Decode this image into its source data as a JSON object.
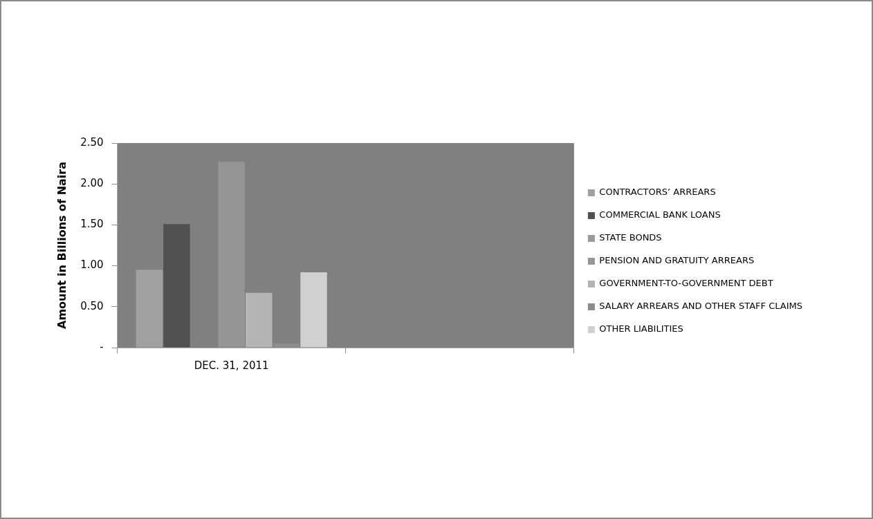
{
  "chart_data": {
    "type": "bar",
    "ylabel": "Amount in Billions of Naira",
    "categories": [
      "DEC. 31, 2011",
      null
    ],
    "series": [
      {
        "name": "CONTRACTORS’ ARREARS",
        "color": "#a0a0a0",
        "values": [
          0.95,
          null
        ]
      },
      {
        "name": "COMMERCIAL BANK LOANS",
        "color": "#505050",
        "values": [
          1.51,
          null
        ]
      },
      {
        "name": "STATE BONDS",
        "color": "#9a9a9a",
        "values": [
          0,
          null
        ]
      },
      {
        "name": "PENSION AND GRATUITY ARREARS",
        "color": "#959595",
        "values": [
          2.27,
          null
        ]
      },
      {
        "name": "GOVERNMENT-TO-GOVERNMENT DEBT",
        "color": "#b4b4b4",
        "values": [
          0.67,
          null
        ]
      },
      {
        "name": "SALARY ARREARS AND OTHER STAFF CLAIMS",
        "color": "#8c8c8c",
        "values": [
          0.05,
          null
        ]
      },
      {
        "name": "OTHER LIABILITIES",
        "color": "#d0d0d0",
        "values": [
          0.92,
          null
        ]
      }
    ],
    "ylim": [
      0,
      2.5
    ],
    "yticks": [
      {
        "value": 0,
        "label": "-"
      },
      {
        "value": 0.5,
        "label": "0.50"
      },
      {
        "value": 1,
        "label": "1.00"
      },
      {
        "value": 1.5,
        "label": "1.50"
      },
      {
        "value": 2,
        "label": "2.00"
      },
      {
        "value": 2.5,
        "label": "2.50"
      }
    ],
    "grid": false,
    "legend": "right"
  }
}
